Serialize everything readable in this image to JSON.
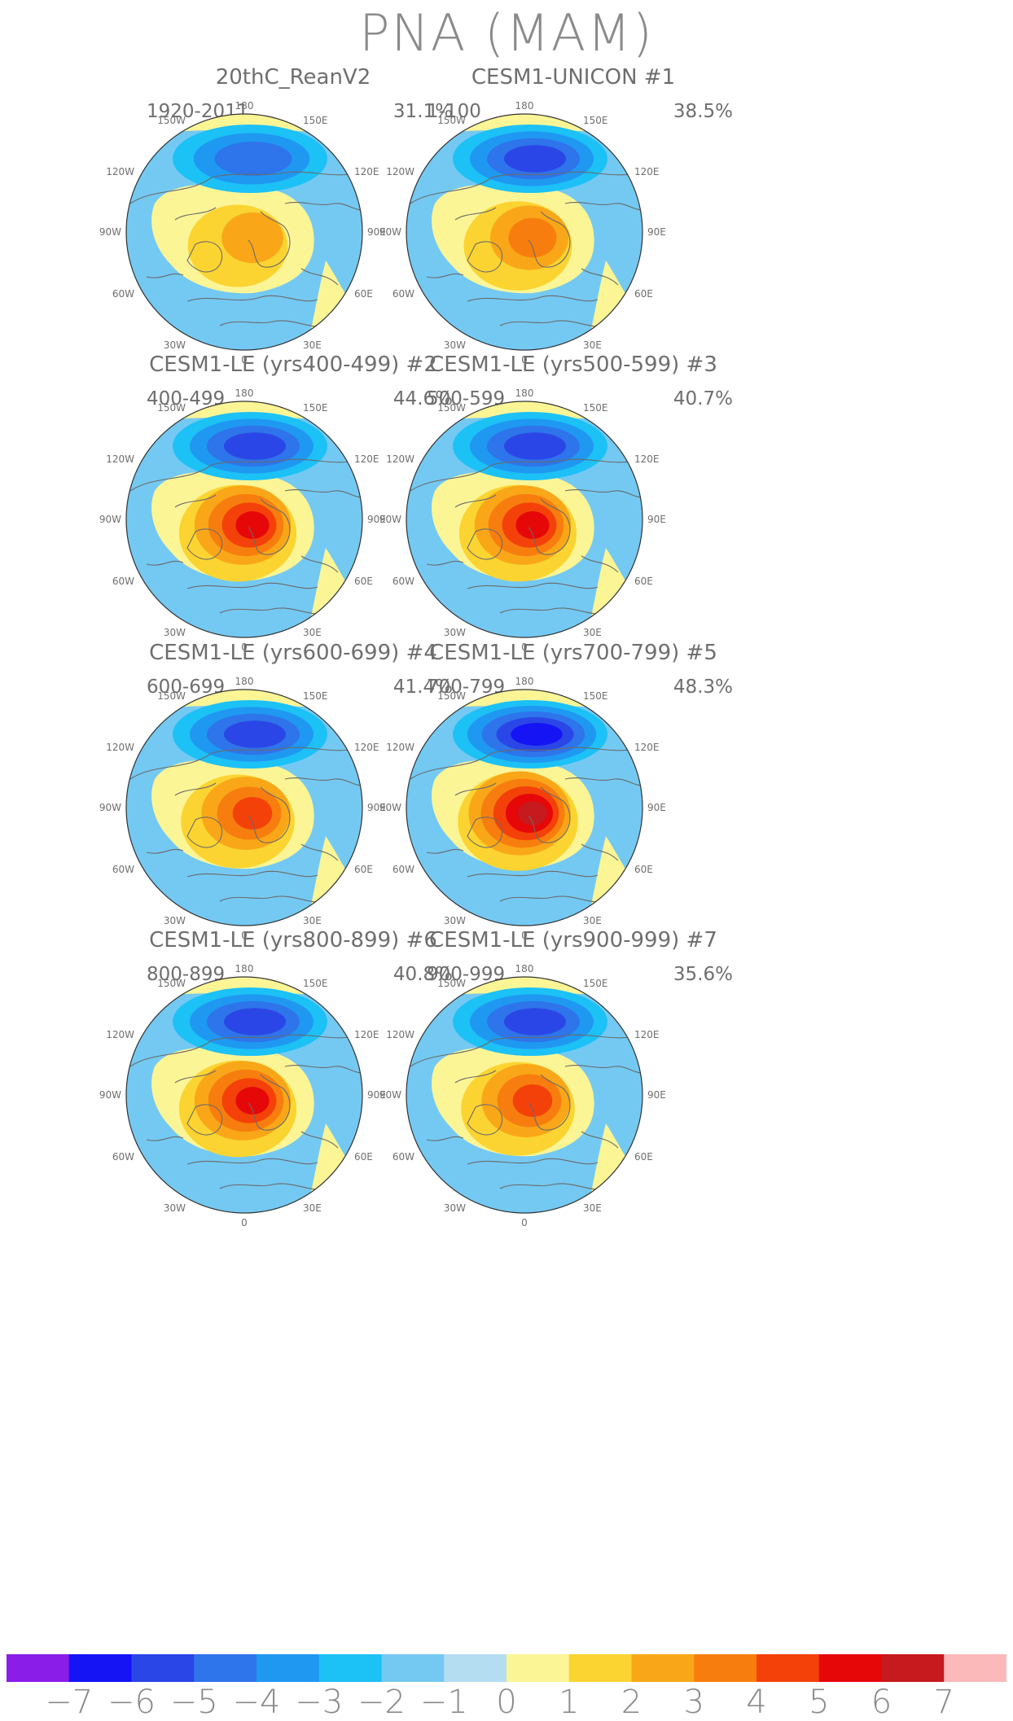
{
  "title": "PNA (MAM)",
  "colors": {
    "levels": [
      "#8a1de8",
      "#1414f5",
      "#2b46e6",
      "#2e74ea",
      "#1f98f2",
      "#1cc1f6",
      "#74c9f2",
      "#b5ddf2",
      "#fcf596",
      "#fbd431",
      "#f9a718",
      "#f77e0e",
      "#f4410a",
      "#e60709",
      "#c61a1e",
      "#fbb9b9"
    ],
    "coast": "#6a6a6a",
    "ring": "#333333"
  },
  "colorbar": {
    "labels": [
      "-7",
      "-6",
      "-5",
      "-4",
      "-3",
      "-2",
      "-1",
      "0",
      "1",
      "2",
      "3",
      "4",
      "5",
      "6",
      "7"
    ]
  },
  "map_labels": {
    "top": "180",
    "bottom": "0",
    "left": "90W",
    "right": "90E",
    "upper_left_1": "150W",
    "upper_left_2": "120W",
    "lower_left_1": "60W",
    "lower_left_2": "30W",
    "upper_right_1": "150E",
    "upper_right_2": "120E",
    "lower_right_1": "60E",
    "lower_right_2": "30E"
  },
  "panels": [
    {
      "title": "20thC_ReanV2",
      "years": "1920-2011",
      "percent": "31.1%",
      "neg": -4,
      "pos": 2
    },
    {
      "title": "CESM1-UNICON       #1",
      "years": "1-100",
      "percent": "38.5%",
      "neg": -5,
      "pos": 3
    },
    {
      "title": "CESM1-LE (yrs400-499) #2",
      "years": "400-499",
      "percent": "44.6%",
      "neg": -5,
      "pos": 5
    },
    {
      "title": "CESM1-LE (yrs500-599) #3",
      "years": "500-599",
      "percent": "40.7%",
      "neg": -5,
      "pos": 5
    },
    {
      "title": "CESM1-LE (yrs600-699) #4",
      "years": "600-699",
      "percent": "41.4%",
      "neg": -5,
      "pos": 4
    },
    {
      "title": "CESM1-LE (yrs700-799) #5",
      "years": "700-799",
      "percent": "48.3%",
      "neg": -6,
      "pos": 6
    },
    {
      "title": "CESM1-LE (yrs800-899) #6",
      "years": "800-899",
      "percent": "40.8%",
      "neg": -5,
      "pos": 5
    },
    {
      "title": "CESM1-LE (yrs900-999) #7",
      "years": "900-999",
      "percent": "35.6%",
      "neg": -5,
      "pos": 4
    }
  ]
}
